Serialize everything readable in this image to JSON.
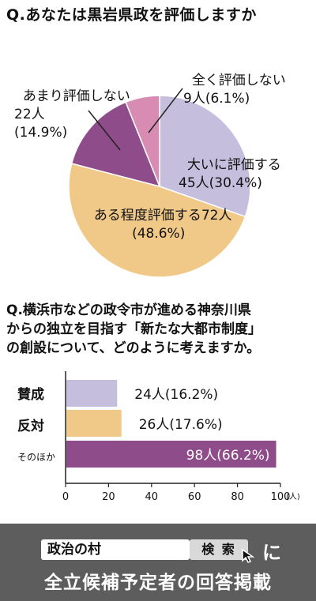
{
  "question1": "Q.あなたは黒岩県政を評価しますか",
  "chart_data": [
    {
      "type": "pie",
      "slices": [
        {
          "label": "大いに評価する",
          "count": 45,
          "count_text": "45人",
          "percent": 30.4,
          "percent_text": "(30.4%)",
          "color": "#c6bedd"
        },
        {
          "label": "ある程度評価する",
          "count": 72,
          "count_text": "72人",
          "percent": 48.6,
          "percent_text": "(48.6%)",
          "color": "#f0c989"
        },
        {
          "label": "あまり評価しない",
          "count": 22,
          "count_text": "22人",
          "percent": 14.9,
          "percent_text": "(14.9%)",
          "color": "#8e4d8a"
        },
        {
          "label": "全く評価しない",
          "count": 9,
          "count_text": "9人",
          "percent": 6.1,
          "percent_text": "(6.1%)",
          "color": "#d98cb3"
        }
      ]
    },
    {
      "type": "bar",
      "orientation": "horizontal",
      "categories": [
        "賛成",
        "反対",
        "そのほか"
      ],
      "values": [
        24,
        26,
        98
      ],
      "value_labels": [
        "24人(16.2%)",
        "26人(17.6%)",
        "98人(66.2%)"
      ],
      "colors": [
        "#c6bedd",
        "#f0c989",
        "#8e4d8a"
      ],
      "xlim": [
        0,
        100
      ],
      "xticks": [
        0,
        20,
        40,
        60,
        80,
        100
      ],
      "xunit": "(人)"
    }
  ],
  "question2_lines": [
    "Q.横浜市などの政令市が進める神奈川県",
    "からの独立を目指す「新たな大都市制度」",
    "の創設について、どのように考えますか。"
  ],
  "banner": {
    "search_value": "政治の村",
    "search_button": "検 索",
    "particle": "に",
    "tagline": "全立候補予定者の回答掲載"
  }
}
